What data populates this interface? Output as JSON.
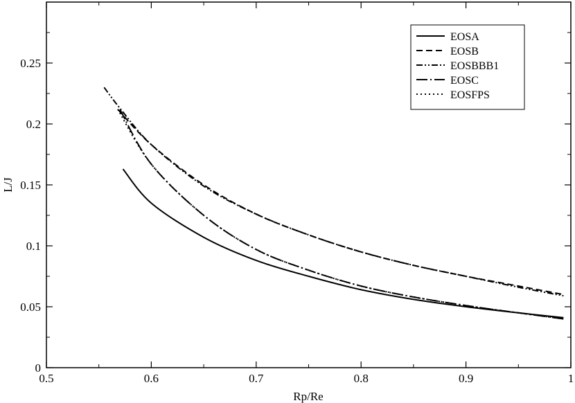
{
  "chart_data": {
    "type": "line",
    "title": "",
    "xlabel": "Rp/Re",
    "ylabel": "L/J",
    "xlim": [
      0.5,
      1.0
    ],
    "ylim": [
      0,
      0.3
    ],
    "xticks": [
      0.5,
      0.6,
      0.7,
      0.8,
      0.9,
      1.0
    ],
    "xtick_labels": [
      "0.5",
      "0.6",
      "0.7",
      "0.8",
      "0.9",
      "1"
    ],
    "yticks": [
      0,
      0.05,
      0.1,
      0.15,
      0.2,
      0.25
    ],
    "ytick_labels": [
      "0",
      "0.05",
      "0.1",
      "0.15",
      "0.2",
      "0.25"
    ],
    "grid": false,
    "legend_position": "top-right",
    "series": [
      {
        "name": "EOSA",
        "dash": "solid",
        "x": [
          0.573,
          0.6,
          0.65,
          0.7,
          0.75,
          0.8,
          0.85,
          0.9,
          0.95,
          0.993
        ],
        "y": [
          0.163,
          0.135,
          0.107,
          0.088,
          0.075,
          0.064,
          0.056,
          0.05,
          0.045,
          0.041
        ]
      },
      {
        "name": "EOSB",
        "dash": "dash",
        "x": [
          0.568,
          0.6,
          0.65,
          0.7,
          0.75,
          0.8,
          0.85,
          0.9,
          0.95,
          0.993
        ],
        "y": [
          0.212,
          0.183,
          0.15,
          0.126,
          0.109,
          0.095,
          0.084,
          0.075,
          0.067,
          0.06
        ]
      },
      {
        "name": "EOSBBB1",
        "dash": "dashdotdot",
        "x": [
          0.555,
          0.57,
          0.6,
          0.65,
          0.7,
          0.75,
          0.8,
          0.85,
          0.9,
          0.95,
          0.993
        ],
        "y": [
          0.23,
          0.213,
          0.183,
          0.149,
          0.126,
          0.109,
          0.095,
          0.084,
          0.075,
          0.066,
          0.059
        ]
      },
      {
        "name": "EOSC",
        "dash": "longdashdot",
        "x": [
          0.57,
          0.6,
          0.65,
          0.7,
          0.75,
          0.8,
          0.85,
          0.9,
          0.95,
          0.993
        ],
        "y": [
          0.212,
          0.167,
          0.125,
          0.097,
          0.08,
          0.067,
          0.058,
          0.051,
          0.045,
          0.04
        ]
      },
      {
        "name": "EOSFPS",
        "dash": "dot",
        "x": [
          0.568,
          0.6,
          0.65,
          0.7,
          0.75,
          0.8,
          0.85,
          0.9,
          0.95,
          0.993
        ],
        "y": [
          0.212,
          0.167,
          0.125,
          0.097,
          0.08,
          0.067,
          0.058,
          0.051,
          0.045,
          0.04
        ]
      }
    ]
  }
}
